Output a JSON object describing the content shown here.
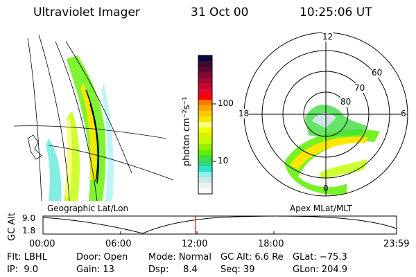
{
  "header": {
    "instrument": "Ultraviolet Imager",
    "date": "31 Oct 00",
    "time": "10:25:06 UT"
  },
  "colorbar": {
    "label": "photon cm⁻²s⁻¹",
    "tick_labels": [
      "100",
      "10"
    ],
    "scale": "log",
    "colors": [
      "#0a0a3a",
      "#3a0a30",
      "#5a0a30",
      "#800a30",
      "#a00a30",
      "#c00a30",
      "#e00a30",
      "#ff0000",
      "#ff7a00",
      "#ffa500",
      "#ffc800",
      "#ffe600",
      "#ffff80",
      "#f0ff00",
      "#d8f000",
      "#c0ff00",
      "#9aee00",
      "#60f000",
      "#40dd40",
      "#30d870",
      "#30e0d0",
      "#90f0f0",
      "#d0e6e6",
      "#e8f4f0",
      "#ffffff"
    ]
  },
  "left_panel": {
    "label": "Geographic Lat/Lon"
  },
  "right_panel": {
    "label": "Apex MLat/MLT",
    "mlt_labels": {
      "top": "12",
      "left": "18",
      "right": "6",
      "bottom": "0"
    },
    "lat_labels": [
      "80",
      "70",
      "60"
    ]
  },
  "altitude_plot": {
    "ylabel": "GC Alt",
    "y_ticks": [
      "9.0",
      "1.8"
    ],
    "x_ticks": [
      "00:00",
      "06:00",
      "12:00",
      "18:00",
      "23:59"
    ],
    "current_time_marker": "10:25",
    "marker_color": "#ff0000"
  },
  "info": {
    "row1": [
      "Flt: LBHL",
      "Door: Open",
      "Mode: Normal",
      "GC Alt: 6.6 Re",
      "GLat: −75.3"
    ],
    "row2": [
      "IP:  9.0",
      "Gain: 13",
      "Dsp:     8.4",
      "Seq: 39",
      "GLon: 204.9"
    ]
  }
}
